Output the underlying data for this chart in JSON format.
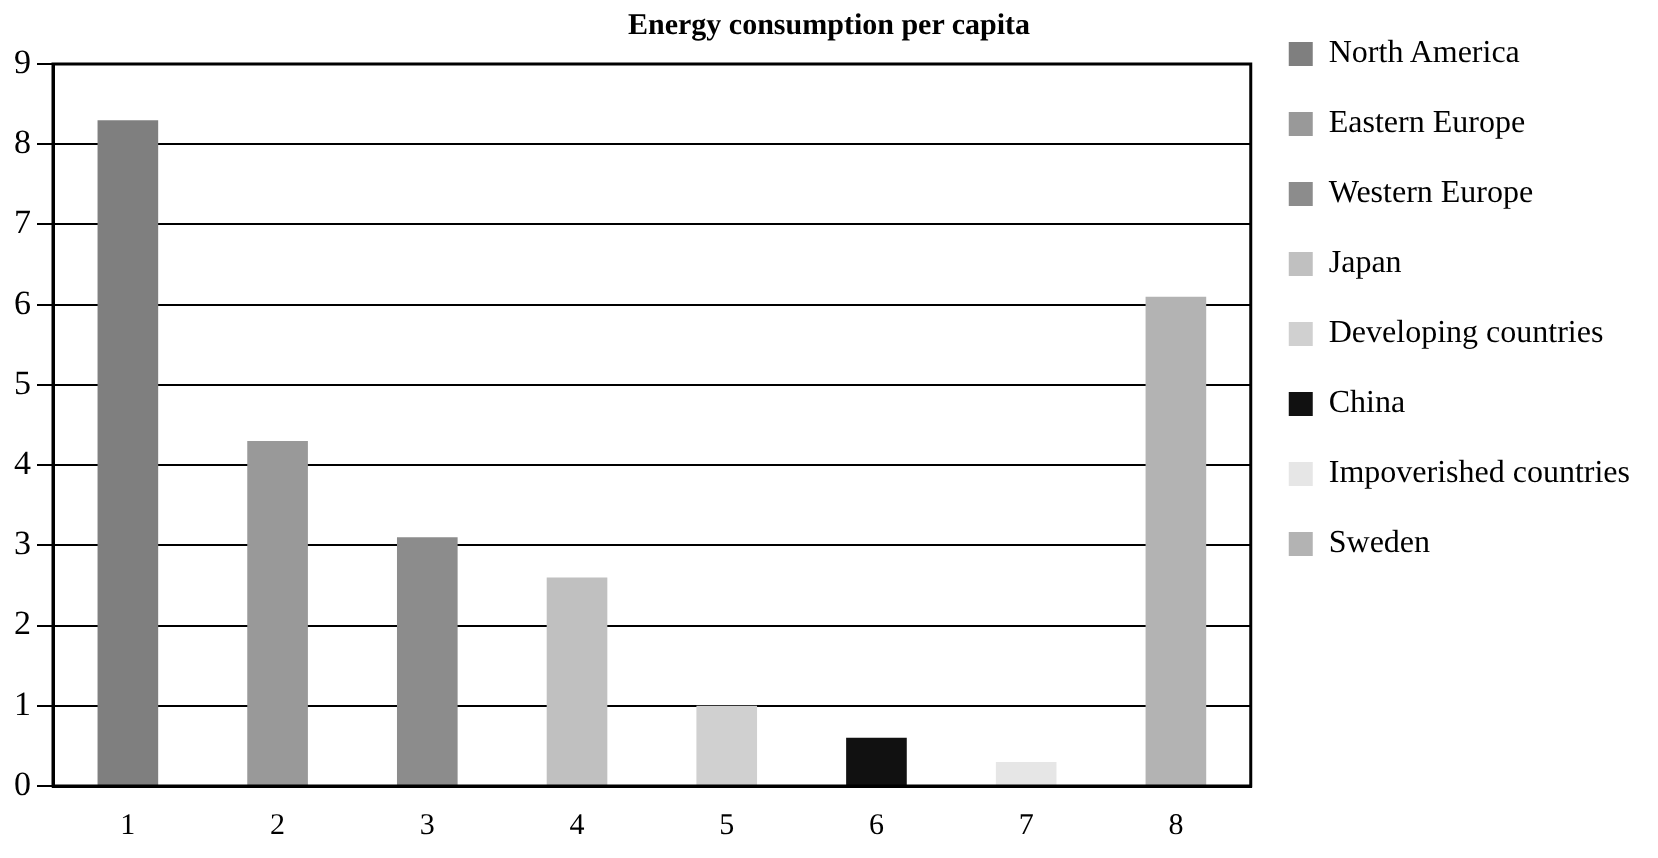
{
  "chart_data": {
    "type": "bar",
    "title": "Energy consumption per capita",
    "categories": [
      "1",
      "2",
      "3",
      "4",
      "5",
      "6",
      "7",
      "8"
    ],
    "series": [
      {
        "name": "North America",
        "color": "#7f7f7f",
        "values": [
          8.3,
          null,
          null,
          null,
          null,
          null,
          null,
          null
        ]
      },
      {
        "name": "Eastern Europe",
        "color": "#999999",
        "values": [
          null,
          4.3,
          null,
          null,
          null,
          null,
          null,
          null
        ]
      },
      {
        "name": "Western Europe",
        "color": "#8c8c8c",
        "values": [
          null,
          null,
          3.1,
          null,
          null,
          null,
          null,
          null
        ]
      },
      {
        "name": "Japan",
        "color": "#c0c0c0",
        "values": [
          null,
          null,
          null,
          2.6,
          null,
          null,
          null,
          null
        ]
      },
      {
        "name": "Developing countries",
        "color": "#d0d0d0",
        "values": [
          null,
          null,
          null,
          null,
          1.0,
          null,
          null,
          null
        ]
      },
      {
        "name": "China",
        "color": "#111111",
        "values": [
          null,
          null,
          null,
          null,
          null,
          0.6,
          null,
          null
        ]
      },
      {
        "name": "Impoverished countries",
        "color": "#e6e6e6",
        "values": [
          null,
          null,
          null,
          null,
          null,
          null,
          0.3,
          null
        ]
      },
      {
        "name": "Sweden",
        "color": "#b3b3b3",
        "values": [
          null,
          null,
          null,
          null,
          null,
          null,
          null,
          6.1
        ]
      }
    ],
    "ylim": [
      0,
      9
    ],
    "yticks": [
      0,
      1,
      2,
      3,
      4,
      5,
      6,
      7,
      8,
      9
    ],
    "grid": "y",
    "legend": "right"
  }
}
